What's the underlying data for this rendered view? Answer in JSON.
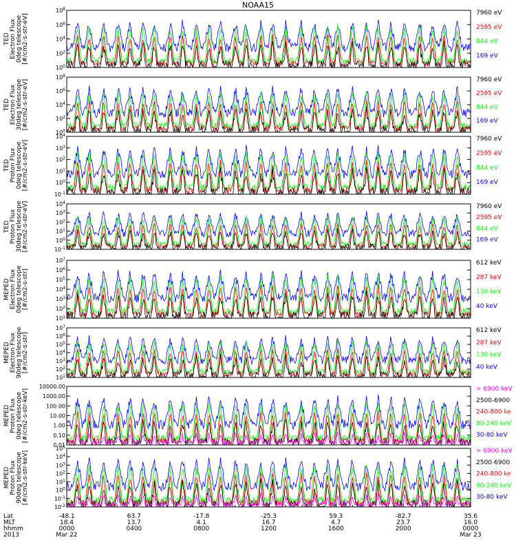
{
  "title": "NOAA15",
  "colors": {
    "blue": "#0000ff",
    "red": "#ff0000",
    "green": "#00ff00",
    "black": "#000000",
    "magenta": "#ff00ff"
  },
  "chart_data": [
    {
      "type": "line",
      "ylabel": [
        "TED",
        "Electron Flux",
        "0deg telescope",
        "[#/cm2-s-str-eV]"
      ],
      "ylim": [
        1,
        100000000
      ],
      "scale": "log",
      "yticks": [
        "10^0",
        "10^2",
        "10^4",
        "10^6",
        "10^8"
      ],
      "series": [
        {
          "name": "7960 eV",
          "color": "#000000"
        },
        {
          "name": "2595 eV",
          "color": "#ff0000"
        },
        {
          "name": "844 eV",
          "color": "#00ff00"
        },
        {
          "name": "169 eV",
          "color": "#0000ff"
        }
      ]
    },
    {
      "type": "line",
      "ylabel": [
        "TED",
        "Electron Flux",
        "30deg telescope",
        "[#/cm2-s-str-eV]"
      ],
      "ylim": [
        1,
        100000000
      ],
      "scale": "log",
      "yticks": [
        "10^0",
        "10^2",
        "10^4",
        "10^6",
        "10^8"
      ],
      "series": [
        {
          "name": "7960 eV",
          "color": "#000000"
        },
        {
          "name": "2595 eV",
          "color": "#ff0000"
        },
        {
          "name": "844 eV",
          "color": "#00ff00"
        },
        {
          "name": "169 eV",
          "color": "#0000ff"
        }
      ]
    },
    {
      "type": "line",
      "ylabel": [
        "TED",
        "Proton Flux",
        "0deg telescope",
        "[#/cm2-s-str-eV]"
      ],
      "ylim": [
        0.1,
        10000
      ],
      "scale": "log",
      "yticks": [
        "10^-1",
        "10^0",
        "10^1",
        "10^2",
        "10^3",
        "10^4"
      ],
      "series": [
        {
          "name": "7960 eV",
          "color": "#000000"
        },
        {
          "name": "2595 eV",
          "color": "#ff0000"
        },
        {
          "name": "844 eV",
          "color": "#00ff00"
        },
        {
          "name": "169 eV",
          "color": "#0000ff"
        }
      ]
    },
    {
      "type": "line",
      "ylabel": [
        "TED",
        "Proton Flux",
        "30deg telescope",
        "[#/cm2-s-str-eV]"
      ],
      "ylim": [
        0.1,
        10000
      ],
      "scale": "log",
      "yticks": [
        "10^-1",
        "10^0",
        "10^1",
        "10^2",
        "10^3",
        "10^4"
      ],
      "series": [
        {
          "name": "7960 eV",
          "color": "#000000"
        },
        {
          "name": "2595 eV",
          "color": "#ff0000"
        },
        {
          "name": "844 eV",
          "color": "#00ff00"
        },
        {
          "name": "169 eV",
          "color": "#0000ff"
        }
      ]
    },
    {
      "type": "line",
      "ylabel": [
        "MEPED",
        "Electron Flux",
        "0deg telescope",
        "[#/cm2-s-str]"
      ],
      "ylim": [
        10,
        10000000
      ],
      "scale": "log",
      "yticks": [
        "10^1",
        "10^2",
        "10^3",
        "10^4",
        "10^5",
        "10^6",
        "10^7"
      ],
      "series": [
        {
          "name": "612 keV",
          "color": "#000000"
        },
        {
          "name": "287 keV",
          "color": "#ff0000"
        },
        {
          "name": "130 keV",
          "color": "#00ff00"
        },
        {
          "name": "40 keV",
          "color": "#0000ff"
        }
      ]
    },
    {
      "type": "line",
      "ylabel": [
        "MEPED",
        "Electron Flux",
        "90deg telescope",
        "[#/cm2-s-str]"
      ],
      "ylim": [
        10,
        10000000
      ],
      "scale": "log",
      "yticks": [
        "10^1",
        "10^2",
        "10^3",
        "10^4",
        "10^5",
        "10^6",
        "10^7"
      ],
      "series": [
        {
          "name": "612 keV",
          "color": "#000000"
        },
        {
          "name": "287 keV",
          "color": "#ff0000"
        },
        {
          "name": "130 keV",
          "color": "#00ff00"
        },
        {
          "name": "40 keV",
          "color": "#0000ff"
        }
      ]
    },
    {
      "type": "line",
      "ylabel": [
        "MEPED",
        "Proton Flux",
        "0deg telescope",
        "[#/cm2-s-str-keV]"
      ],
      "ylim": [
        0.01,
        10000
      ],
      "scale": "log",
      "yticks": [
        "0.01",
        "0.10",
        "1.00",
        "10.00",
        "100.00",
        "1000.00",
        "10000.00"
      ],
      "series": [
        {
          "name": "> 6900 keV",
          "color": "#ff00ff"
        },
        {
          "name": "2500-6900",
          "color": "#000000"
        },
        {
          "name": "240-800 ke",
          "color": "#ff0000"
        },
        {
          "name": "80-240 keV",
          "color": "#00ff00"
        },
        {
          "name": "30-80 keV",
          "color": "#0000ff"
        }
      ]
    },
    {
      "type": "line",
      "ylabel": [
        "MEPED",
        "Proton Flux",
        "90deg telescope",
        "[#/cm2-s-str-keV]"
      ],
      "ylim": [
        0.01,
        100000
      ],
      "scale": "log",
      "yticks": [
        "10^-2",
        "10^-1",
        "10^0",
        "10^1",
        "10^2",
        "10^3",
        "10^4",
        "10^5"
      ],
      "series": [
        {
          "name": "> 6900 keV",
          "color": "#ff00ff"
        },
        {
          "name": "2500-6900",
          "color": "#000000"
        },
        {
          "name": "240-800 ke",
          "color": "#ff0000"
        },
        {
          "name": "80-240 keV",
          "color": "#00ff00"
        },
        {
          "name": "30-80 keV",
          "color": "#0000ff"
        }
      ]
    }
  ],
  "time_axis": {
    "row_labels": [
      "Lat",
      "MLT",
      "hhmm",
      "2013"
    ],
    "ticks": [
      {
        "lat": "-48.1",
        "mlt": "18.4",
        "hhmm": "0000",
        "date": "Mar 22"
      },
      {
        "lat": "63.7",
        "mlt": "13.7",
        "hhmm": "0400",
        "date": ""
      },
      {
        "lat": "-17.8",
        "mlt": "4.1",
        "hhmm": "0800",
        "date": ""
      },
      {
        "lat": "-25.3",
        "mlt": "16.7",
        "hhmm": "1200",
        "date": ""
      },
      {
        "lat": "59.3",
        "mlt": "4.7",
        "hhmm": "1600",
        "date": ""
      },
      {
        "lat": "-82.7",
        "mlt": "23.7",
        "hhmm": "2000",
        "date": ""
      },
      {
        "lat": "35.6",
        "mlt": "16.0",
        "hhmm": "0000",
        "date": "Mar 23"
      }
    ]
  }
}
